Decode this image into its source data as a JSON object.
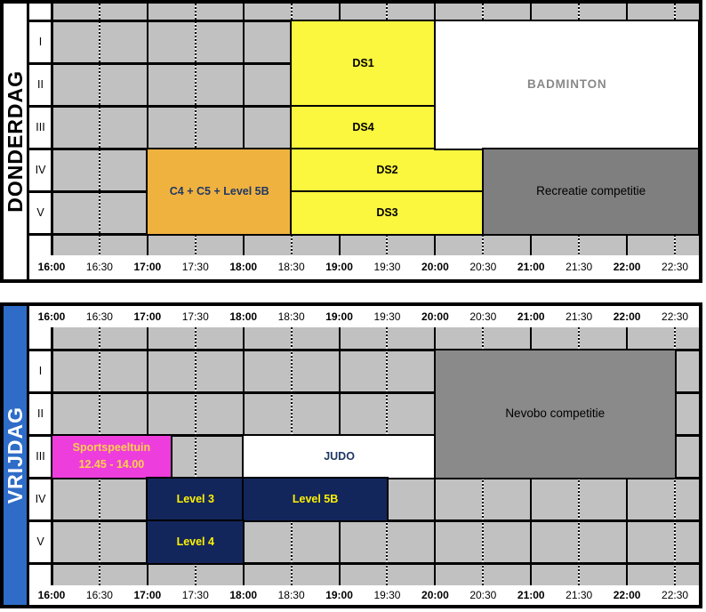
{
  "schedule": {
    "time_labels": [
      "16:00",
      "16:30",
      "17:00",
      "17:30",
      "18:00",
      "18:30",
      "19:00",
      "19:30",
      "20:00",
      "20:30",
      "21:00",
      "21:30",
      "22:00",
      "22:30"
    ],
    "row_labels": [
      "I",
      "II",
      "III",
      "IV",
      "V"
    ],
    "colors": {
      "cell_gray": "#C1C1C1",
      "yellow": "#FBF63E",
      "orange": "#F0B23F",
      "magenta": "#ED3DDC",
      "navy": "#13265C",
      "dark_gray_recreatie": "#7F7F7F",
      "dark_gray_nevobo": "#8A8A8A",
      "friday_blue": "#2E6CC7",
      "navy_text": "#1F3864",
      "badminton_text": "#898989",
      "level_text_yellow": "#FFF200",
      "sportspeeltuin_text": "#FFD04A"
    },
    "days": [
      {
        "name": "DONDERDAG",
        "bar_bg": "#FFFFFF",
        "bar_fg": "#000000",
        "labels_top": false,
        "labels_bottom": true,
        "blocks": [
          {
            "label": "C4 + C5 + Level 5B",
            "rows": [
              4,
              5
            ],
            "start": "17:00",
            "end": "18:30",
            "bg": "orange",
            "fg": "navy_text",
            "style": "bold"
          },
          {
            "label": "DS1",
            "rows": [
              1,
              2
            ],
            "start": "18:30",
            "end": "20:00",
            "bg": "yellow",
            "fg": "#000000",
            "style": "bold"
          },
          {
            "label": "DS4",
            "rows": [
              3,
              3
            ],
            "start": "18:30",
            "end": "20:00",
            "bg": "yellow",
            "fg": "#000000",
            "style": "bold"
          },
          {
            "label": "DS2",
            "rows": [
              4,
              4
            ],
            "start": "18:30",
            "end": "20:30",
            "bg": "yellow",
            "fg": "#000000",
            "style": "bold"
          },
          {
            "label": "DS3",
            "rows": [
              5,
              5
            ],
            "start": "18:30",
            "end": "20:30",
            "bg": "yellow",
            "fg": "#000000",
            "style": "bold"
          },
          {
            "label": "BADMINTON",
            "rows": [
              1,
              3
            ],
            "start": "20:00",
            "end": "table-end",
            "bg": "#FFFFFF",
            "fg": "badminton_text",
            "style": "bold wide-ls"
          },
          {
            "label": "Recreatie competitie",
            "rows": [
              4,
              5
            ],
            "start": "20:30",
            "end": "table-end",
            "bg": "dark_gray_recreatie",
            "fg": "#000000",
            "style": "plain"
          }
        ]
      },
      {
        "name": "VRIJDAG",
        "bar_bg": "#2E6CC7",
        "bar_fg": "#FFFFFF",
        "labels_top": true,
        "labels_bottom": true,
        "blocks": [
          {
            "lines": [
              "Sportspeeltuin",
              "12.45 - 14.00"
            ],
            "label": "Sportspeeltuin 12.45 - 14.00",
            "rows": [
              3,
              3
            ],
            "start": "16:00",
            "end": "17:15",
            "bg": "magenta",
            "fg": "sportspeeltuin_text",
            "style": "bold"
          },
          {
            "label": "JUDO",
            "rows": [
              3,
              3
            ],
            "start": "18:00",
            "end": "20:00",
            "bg": "#FFFFFF",
            "fg": "navy_text",
            "style": "bold"
          },
          {
            "label": "Level 3",
            "rows": [
              4,
              4
            ],
            "start": "17:00",
            "end": "18:00",
            "bg": "navy",
            "fg": "level_text_yellow",
            "style": "bold"
          },
          {
            "label": "Level 5B",
            "rows": [
              4,
              4
            ],
            "start": "18:00",
            "end": "19:30",
            "bg": "navy",
            "fg": "level_text_yellow",
            "style": "bold"
          },
          {
            "label": "Level 4",
            "rows": [
              5,
              5
            ],
            "start": "17:00",
            "end": "18:00",
            "bg": "navy",
            "fg": "level_text_yellow",
            "style": "bold"
          },
          {
            "label": "Nevobo competitie",
            "rows": [
              1,
              3
            ],
            "start": "20:00",
            "end": "22:30",
            "bg": "dark_gray_nevobo",
            "fg": "#000000",
            "style": "plain"
          }
        ]
      }
    ]
  }
}
